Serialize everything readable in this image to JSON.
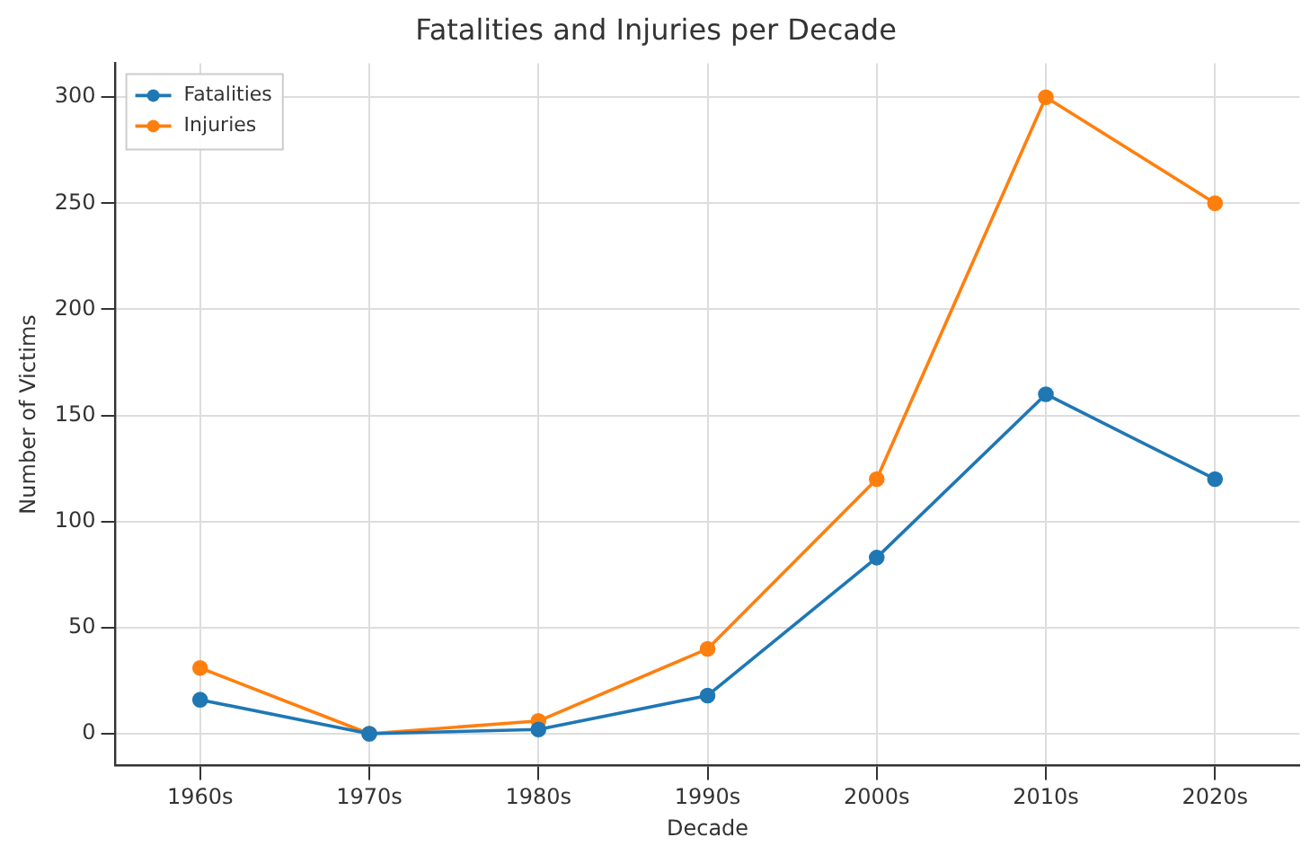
{
  "chart_data": {
    "type": "line",
    "title": "Fatalities and Injuries per Decade",
    "xlabel": "Decade",
    "ylabel": "Number of Victims",
    "categories": [
      "1960s",
      "1970s",
      "1980s",
      "1990s",
      "2000s",
      "2010s",
      "2020s"
    ],
    "series": [
      {
        "name": "Fatalities",
        "color": "#1f77b4",
        "values": [
          16,
          0,
          2,
          18,
          83,
          160,
          120
        ]
      },
      {
        "name": "Injuries",
        "color": "#ff7f0e",
        "values": [
          31,
          0,
          6,
          40,
          120,
          300,
          250
        ]
      }
    ],
    "ylim": [
      -15,
      316
    ],
    "yticks": [
      0,
      50,
      100,
      150,
      200,
      250,
      300
    ],
    "grid": true,
    "legend": "top left",
    "marker": "circle",
    "line_style": "solid"
  }
}
